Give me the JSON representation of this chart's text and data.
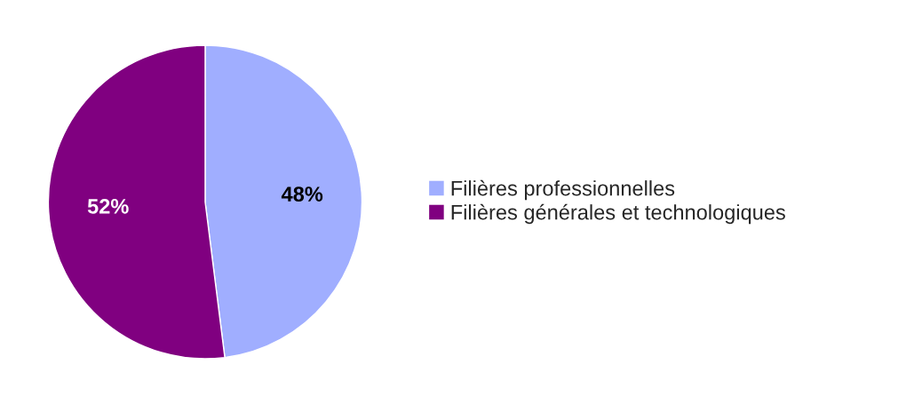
{
  "chart_data": {
    "type": "pie",
    "categories": [
      "Filières professionnelles",
      "Filières générales et technologiques"
    ],
    "values": [
      48,
      52
    ],
    "colors": [
      "#a0aeff",
      "#800080"
    ],
    "value_labels": [
      "48%",
      "52%"
    ],
    "legend": "right"
  }
}
